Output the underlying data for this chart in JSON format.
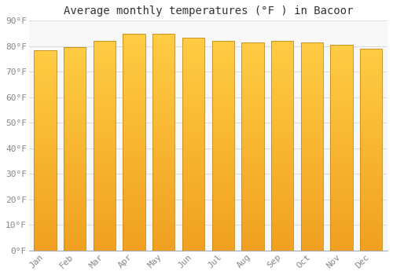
{
  "title": "Average monthly temperatures (°F ) in Bacoor",
  "months": [
    "Jan",
    "Feb",
    "Mar",
    "Apr",
    "May",
    "Jun",
    "Jul",
    "Aug",
    "Sep",
    "Oct",
    "Nov",
    "Dec"
  ],
  "values": [
    78.5,
    79.5,
    82.2,
    85.0,
    85.0,
    83.3,
    82.2,
    81.5,
    82.2,
    81.5,
    80.5,
    79.0
  ],
  "bar_color_top": "#FFCC44",
  "bar_color_bottom": "#F0A020",
  "bar_edge_color": "#C8881A",
  "background_color": "#FFFFFF",
  "plot_bg_color": "#F8F8F8",
  "grid_color": "#DDDDDD",
  "ylim": [
    0,
    90
  ],
  "yticks": [
    0,
    10,
    20,
    30,
    40,
    50,
    60,
    70,
    80,
    90
  ],
  "ytick_labels": [
    "0°F",
    "10°F",
    "20°F",
    "30°F",
    "40°F",
    "50°F",
    "60°F",
    "70°F",
    "80°F",
    "90°F"
  ],
  "title_fontsize": 10,
  "tick_fontsize": 8,
  "font_family": "monospace",
  "tick_color": "#888888",
  "bar_width": 0.75
}
